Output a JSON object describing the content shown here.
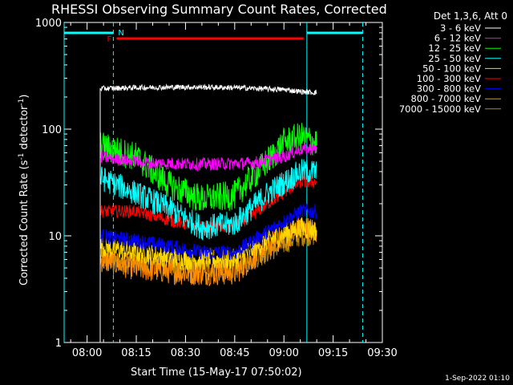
{
  "chart_data": {
    "type": "line",
    "title": "RHESSI Observing Summary Count Rates, Corrected",
    "xlabel": "Start Time (15-May-17 07:50:02)",
    "ylabel": "Corrected Count Rate (s⁻¹ detector⁻¹)",
    "ylabel_main": "Corrected Count Rate (s",
    "ylabel_exp": "-1",
    "ylabel_mid": " detector",
    "ylabel_end": ")",
    "y_scale": "log",
    "ylim": [
      1,
      1000
    ],
    "xlim": [
      "07:53",
      "09:30"
    ],
    "x_ticks": [
      "08:00",
      "08:15",
      "08:30",
      "08:45",
      "09:00",
      "09:15",
      "09:30"
    ],
    "y_ticks": [
      "1",
      "10",
      "100",
      "1000"
    ],
    "legend_title": "Det 1,3,6, Att 0",
    "legend_position": "top-right",
    "footer": "1-Sep-2022 01:10",
    "flags": {
      "night_label": "N",
      "flare_label": "F",
      "night_intervals": [
        [
          "07:53",
          "08:08"
        ],
        [
          "09:07",
          "09:24"
        ]
      ],
      "flare_interval": [
        "08:09",
        "09:06"
      ],
      "night_color": "#00ffff",
      "flare_color": "#ff0000",
      "night_marks": [
        "07:53",
        "08:08",
        "09:07",
        "09:24"
      ]
    },
    "series": [
      {
        "name": "3 - 6 keV",
        "color": "#ffffff",
        "start": "08:04",
        "end": "09:10",
        "points": [
          [
            "08:04",
            240
          ],
          [
            "08:15",
            245
          ],
          [
            "08:30",
            248
          ],
          [
            "08:45",
            245
          ],
          [
            "09:00",
            235
          ],
          [
            "09:05",
            225
          ],
          [
            "09:10",
            220
          ]
        ]
      },
      {
        "name": "6 - 12 keV",
        "color": "#ff00ff",
        "start": "08:04",
        "end": "09:10",
        "points": [
          [
            "08:04",
            55
          ],
          [
            "08:10",
            52
          ],
          [
            "08:20",
            48
          ],
          [
            "08:35",
            47
          ],
          [
            "08:50",
            48
          ],
          [
            "09:00",
            55
          ],
          [
            "09:05",
            65
          ],
          [
            "09:10",
            65
          ]
        ]
      },
      {
        "name": "12 - 25 keV",
        "color": "#00ff00",
        "start": "08:04",
        "end": "09:10",
        "points": [
          [
            "08:04",
            70
          ],
          [
            "08:15",
            55
          ],
          [
            "08:25",
            30
          ],
          [
            "08:35",
            22
          ],
          [
            "08:45",
            24
          ],
          [
            "08:55",
            50
          ],
          [
            "09:00",
            75
          ],
          [
            "09:05",
            85
          ],
          [
            "09:10",
            75
          ]
        ]
      },
      {
        "name": "25 - 50 keV",
        "color": "#00ffff",
        "start": "08:04",
        "end": "09:10",
        "points": [
          [
            "08:04",
            35
          ],
          [
            "08:15",
            25
          ],
          [
            "08:25",
            18
          ],
          [
            "08:35",
            12
          ],
          [
            "08:45",
            13
          ],
          [
            "08:55",
            25
          ],
          [
            "09:05",
            40
          ],
          [
            "09:10",
            40
          ]
        ]
      },
      {
        "name": "50 - 100 keV",
        "color": "#ffd700",
        "start": "08:04",
        "end": "09:10",
        "points": [
          [
            "08:04",
            8
          ],
          [
            "08:15",
            7
          ],
          [
            "08:30",
            6
          ],
          [
            "08:45",
            6
          ],
          [
            "08:55",
            9
          ],
          [
            "09:05",
            12
          ],
          [
            "09:10",
            11
          ]
        ]
      },
      {
        "name": "100 - 300 keV",
        "color": "#ff0000",
        "start": "08:04",
        "end": "09:10",
        "points": [
          [
            "08:04",
            17
          ],
          [
            "08:15",
            17
          ],
          [
            "08:25",
            14
          ],
          [
            "08:35",
            12
          ],
          [
            "08:45",
            12
          ],
          [
            "08:55",
            20
          ],
          [
            "09:05",
            32
          ],
          [
            "09:10",
            32
          ]
        ]
      },
      {
        "name": "300 - 800 keV",
        "color": "#0000ff",
        "start": "08:04",
        "end": "09:10",
        "points": [
          [
            "08:04",
            10
          ],
          [
            "08:15",
            9
          ],
          [
            "08:25",
            8
          ],
          [
            "08:35",
            7
          ],
          [
            "08:45",
            7
          ],
          [
            "08:55",
            11
          ],
          [
            "09:05",
            17
          ],
          [
            "09:10",
            17
          ]
        ]
      },
      {
        "name": "800 - 7000 keV",
        "color": "#ff8c00",
        "start": "08:04",
        "end": "09:10",
        "points": [
          [
            "08:04",
            6
          ],
          [
            "08:15",
            5
          ],
          [
            "08:30",
            4.5
          ],
          [
            "08:45",
            4.5
          ],
          [
            "08:55",
            8
          ],
          [
            "09:05",
            12
          ],
          [
            "09:10",
            11
          ]
        ]
      },
      {
        "name": "7000 - 15000 keV",
        "color": "#b8860b",
        "start": "08:04",
        "end": "09:10",
        "points": [
          [
            "08:04",
            6
          ],
          [
            "08:15",
            5.5
          ],
          [
            "08:30",
            5
          ],
          [
            "08:45",
            5
          ],
          [
            "08:55",
            7
          ],
          [
            "09:05",
            10
          ],
          [
            "09:10",
            10
          ]
        ]
      }
    ]
  }
}
